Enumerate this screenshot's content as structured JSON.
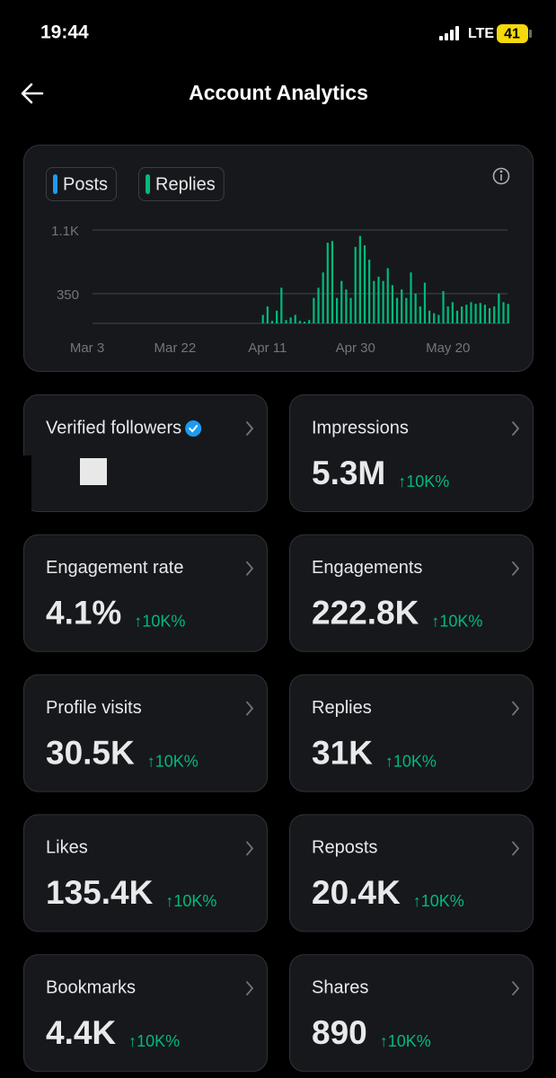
{
  "status_bar": {
    "time": "19:44",
    "network": "LTE",
    "battery": "41"
  },
  "header": {
    "title": "Account Analytics"
  },
  "chart_data": {
    "type": "bar",
    "categories": [
      "Mar 3",
      null,
      null,
      null,
      null,
      null,
      null,
      null,
      null,
      null,
      null,
      null,
      null,
      null,
      null,
      null,
      null,
      null,
      null,
      "Mar 22",
      null,
      null,
      null,
      null,
      null,
      null,
      null,
      null,
      null,
      null,
      null,
      null,
      null,
      null,
      null,
      null,
      null,
      null,
      null,
      "Apr 11",
      null,
      null,
      null,
      null,
      null,
      null,
      null,
      null,
      null,
      null,
      null,
      null,
      null,
      null,
      null,
      null,
      null,
      null,
      "Apr 30",
      null,
      null,
      null,
      null,
      null,
      null,
      null,
      null,
      null,
      null,
      null,
      null,
      null,
      null,
      null,
      null,
      null,
      null,
      null,
      "May 20",
      null,
      null,
      null,
      null,
      null,
      null,
      null,
      null,
      null,
      null,
      null,
      null,
      null
    ],
    "series": [
      {
        "name": "Posts",
        "color": "#1d9bf0",
        "values": [
          0,
          0,
          0,
          0,
          0,
          0,
          0,
          0,
          0,
          0,
          0,
          0,
          0,
          0,
          0,
          0,
          0,
          0,
          0,
          0,
          0,
          0,
          0,
          0,
          0,
          0,
          0,
          0,
          0,
          0,
          0,
          0,
          0,
          0,
          0,
          0,
          0,
          0,
          0,
          0,
          0,
          0,
          0,
          0,
          0,
          0,
          0,
          0,
          0,
          0,
          0,
          0,
          0,
          0,
          0,
          0,
          0,
          0,
          0,
          0,
          0,
          0,
          0,
          0,
          0,
          0,
          0,
          0,
          0,
          0,
          0,
          0,
          0,
          0,
          0,
          0,
          0,
          0,
          0,
          0,
          0,
          0,
          0,
          0,
          0,
          0,
          0,
          0,
          0,
          0,
          0,
          0
        ]
      },
      {
        "name": "Replies",
        "color": "#00ba7c",
        "values": [
          0,
          0,
          0,
          0,
          0,
          0,
          0,
          0,
          0,
          0,
          0,
          0,
          0,
          0,
          0,
          0,
          0,
          0,
          0,
          0,
          0,
          0,
          0,
          0,
          0,
          0,
          0,
          0,
          0,
          0,
          0,
          0,
          0,
          0,
          0,
          0,
          0,
          0,
          100,
          200,
          30,
          150,
          420,
          40,
          70,
          100,
          30,
          20,
          40,
          300,
          420,
          600,
          950,
          970,
          300,
          500,
          400,
          300,
          900,
          1030,
          920,
          750,
          500,
          550,
          500,
          650,
          450,
          300,
          400,
          300,
          600,
          350,
          200,
          480,
          150,
          120,
          100,
          380,
          200,
          250,
          150,
          200,
          220,
          250,
          230,
          240,
          220,
          180,
          200,
          350,
          250,
          230
        ]
      }
    ],
    "ylim": [
      0,
      1100
    ],
    "yticks": [
      350,
      {
        "value": 1100,
        "label": "1.1K"
      }
    ],
    "grid": true
  },
  "stats": [
    {
      "title": "Verified followers"
    },
    {
      "title": "Impressions",
      "value": "5.3M",
      "change": "↑10K%"
    },
    {
      "title": "Engagement rate",
      "value": "4.1%",
      "change": "↑10K%"
    },
    {
      "title": "Engagements",
      "value": "222.8K",
      "change": "↑10K%"
    },
    {
      "title": "Profile visits",
      "value": "30.5K",
      "change": "↑10K%"
    },
    {
      "title": "Replies",
      "value": "31K",
      "change": "↑10K%"
    },
    {
      "title": "Likes",
      "value": "135.4K",
      "change": "↑10K%"
    },
    {
      "title": "Reposts",
      "value": "20.4K",
      "change": "↑10K%"
    },
    {
      "title": "Bookmarks",
      "value": "4.4K",
      "change": "↑10K%"
    },
    {
      "title": "Shares",
      "value": "890",
      "change": "↑10K%"
    }
  ]
}
